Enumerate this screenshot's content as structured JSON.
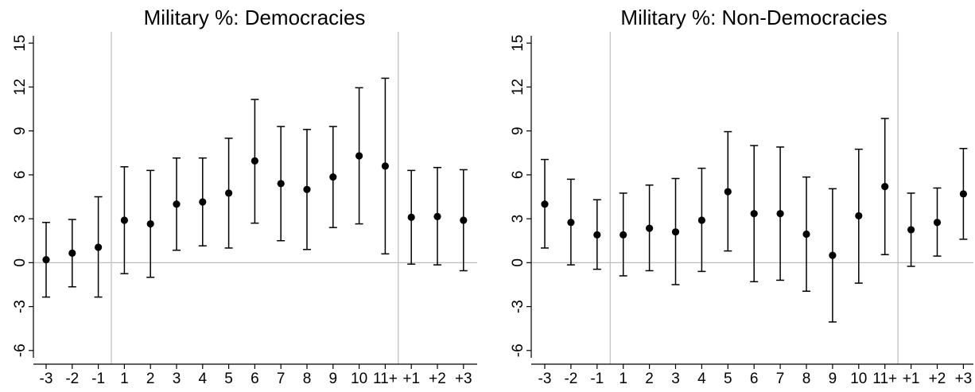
{
  "chart_data": [
    {
      "type": "scatter",
      "title": "Military %: Democracies",
      "categories": [
        "-3",
        "-2",
        "-1",
        "1",
        "2",
        "3",
        "4",
        "5",
        "6",
        "7",
        "8",
        "9",
        "10",
        "11+",
        "+1",
        "+2",
        "+3"
      ],
      "values": [
        0.2,
        0.65,
        1.05,
        2.9,
        2.65,
        4.0,
        4.15,
        4.75,
        6.95,
        5.4,
        5.0,
        5.85,
        7.3,
        6.6,
        3.1,
        3.15,
        2.9
      ],
      "ci_low": [
        -2.35,
        -1.65,
        -2.35,
        -0.75,
        -1.0,
        0.85,
        1.15,
        1.0,
        2.7,
        1.5,
        0.9,
        2.4,
        2.65,
        0.6,
        -0.1,
        -0.15,
        -0.55
      ],
      "ci_high": [
        2.75,
        2.95,
        4.5,
        6.55,
        6.3,
        7.15,
        7.15,
        8.5,
        11.15,
        9.3,
        9.1,
        9.3,
        11.95,
        12.6,
        6.3,
        6.5,
        6.35
      ],
      "yticks": [
        -6,
        -3,
        0,
        3,
        6,
        9,
        12,
        15
      ],
      "ylim": [
        -6.5,
        15.5
      ],
      "reference_line_y": 0,
      "vertical_lines_after": [
        "-1",
        "11+"
      ],
      "xlabel": "",
      "ylabel": "",
      "grid": false,
      "colors": {
        "marker": "#000000",
        "ci": "#000000",
        "reference": "#bdbdbd",
        "axis": "#000000"
      }
    },
    {
      "type": "scatter",
      "title": "Military %: Non-Democracies",
      "categories": [
        "-3",
        "-2",
        "-1",
        "1",
        "2",
        "3",
        "4",
        "5",
        "6",
        "7",
        "8",
        "9",
        "10",
        "11+",
        "+1",
        "+2",
        "+3"
      ],
      "values": [
        4.0,
        2.75,
        1.9,
        1.9,
        2.35,
        2.1,
        2.9,
        4.85,
        3.35,
        3.35,
        1.95,
        0.5,
        3.2,
        5.2,
        2.25,
        2.75,
        4.7
      ],
      "ci_low": [
        1.0,
        -0.15,
        -0.45,
        -0.9,
        -0.55,
        -1.5,
        -0.6,
        0.8,
        -1.3,
        -1.2,
        -1.95,
        -4.05,
        -1.4,
        0.55,
        -0.25,
        0.45,
        1.6
      ],
      "ci_high": [
        7.05,
        5.7,
        4.3,
        4.75,
        5.3,
        5.75,
        6.45,
        8.95,
        8.0,
        7.9,
        5.85,
        5.05,
        7.75,
        9.85,
        4.75,
        5.1,
        7.8
      ],
      "yticks": [
        -6,
        -3,
        0,
        3,
        6,
        9,
        12,
        15
      ],
      "ylim": [
        -6.5,
        15.5
      ],
      "reference_line_y": 0,
      "vertical_lines_after": [
        "-1",
        "11+"
      ],
      "xlabel": "",
      "ylabel": "",
      "grid": false,
      "colors": {
        "marker": "#000000",
        "ci": "#000000",
        "reference": "#bdbdbd",
        "axis": "#000000"
      }
    }
  ]
}
